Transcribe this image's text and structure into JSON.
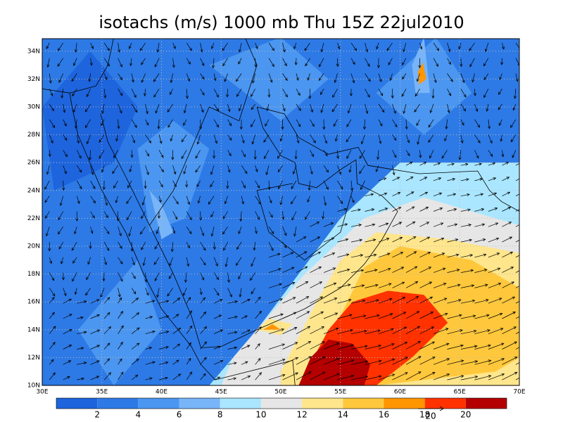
{
  "title": "isotachs (m/s) 1000 mb Thu 15Z 22jul2010",
  "map": {
    "lon_labels": [
      "30E",
      "35E",
      "40E",
      "45E",
      "50E",
      "55E",
      "60E",
      "65E",
      "70E"
    ],
    "lat_labels": [
      "10N",
      "12N",
      "14N",
      "16N",
      "18N",
      "20N",
      "22N",
      "24N",
      "26N",
      "28N",
      "30N",
      "32N",
      "34N"
    ]
  },
  "colorbar": {
    "labels": [
      2,
      4,
      6,
      8,
      10,
      12,
      14,
      16,
      18,
      20
    ],
    "colors": [
      "#1e64dc",
      "#2d7ae6",
      "#4b96f0",
      "#78b4f8",
      "#aae6ff",
      "#e6e6e6",
      "#ffe68c",
      "#ffc83c",
      "#ff9600",
      "#ff3200",
      "#b40000"
    ]
  },
  "vector_reference": {
    "label": "20"
  }
}
